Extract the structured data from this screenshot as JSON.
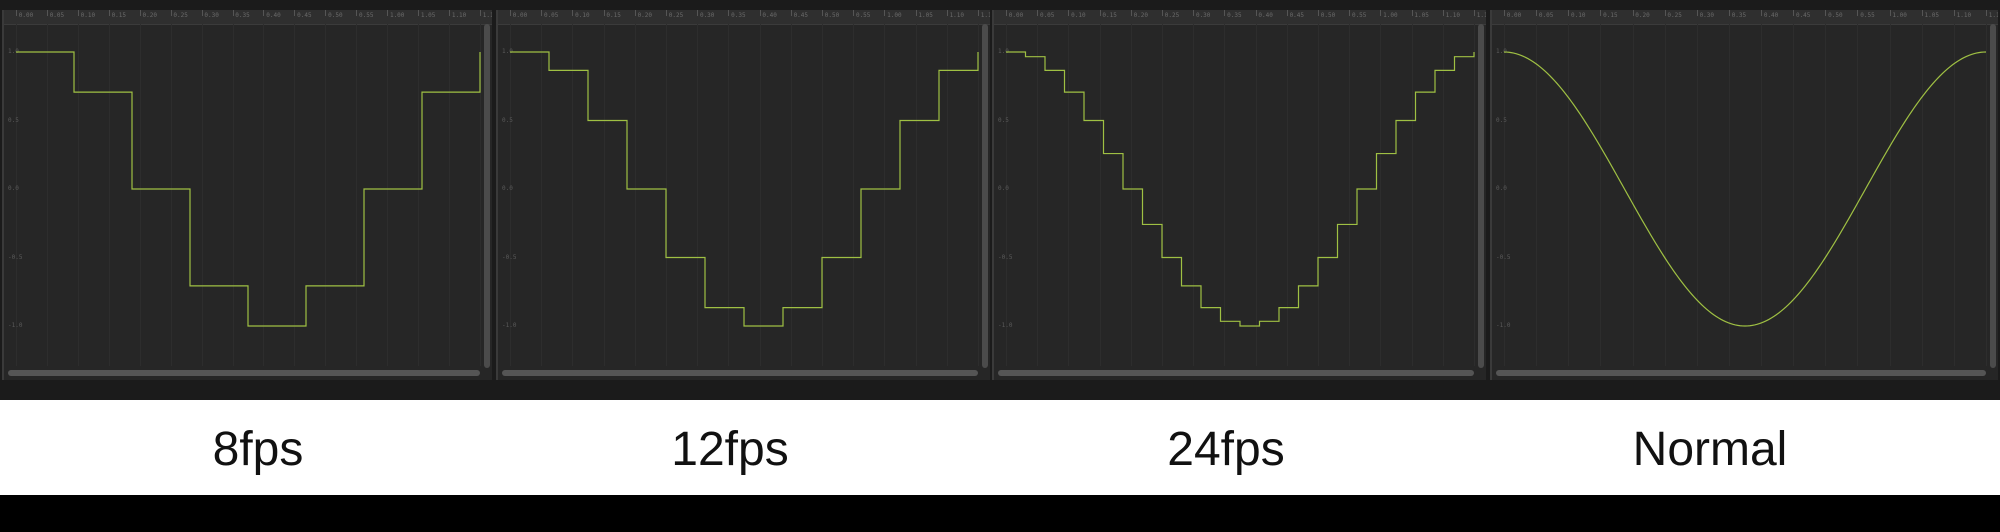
{
  "panels": [
    {
      "id": "8fps",
      "label": "8fps",
      "steps_per_cycle": 8,
      "mode": "stepped"
    },
    {
      "id": "12fps",
      "label": "12fps",
      "steps_per_cycle": 12,
      "mode": "stepped"
    },
    {
      "id": "24fps",
      "label": "24fps",
      "steps_per_cycle": 24,
      "mode": "stepped"
    },
    {
      "id": "normal",
      "label": "Normal",
      "steps_per_cycle": 0,
      "mode": "smooth"
    }
  ],
  "ruler_labels": [
    "0.00",
    "0.05",
    "0.10",
    "0.15",
    "0.20",
    "0.25",
    "0.30",
    "0.35",
    "0.40",
    "0.45",
    "0.50",
    "0.55",
    "1.00",
    "1.05",
    "1.10",
    "1.15"
  ],
  "y_labels": [
    "1.0",
    "0.5",
    "0.0",
    "-0.5",
    "-1.0"
  ],
  "colors": {
    "curve": "#9fc043",
    "panel_bg": "#262626",
    "label_text": "#111111"
  }
}
